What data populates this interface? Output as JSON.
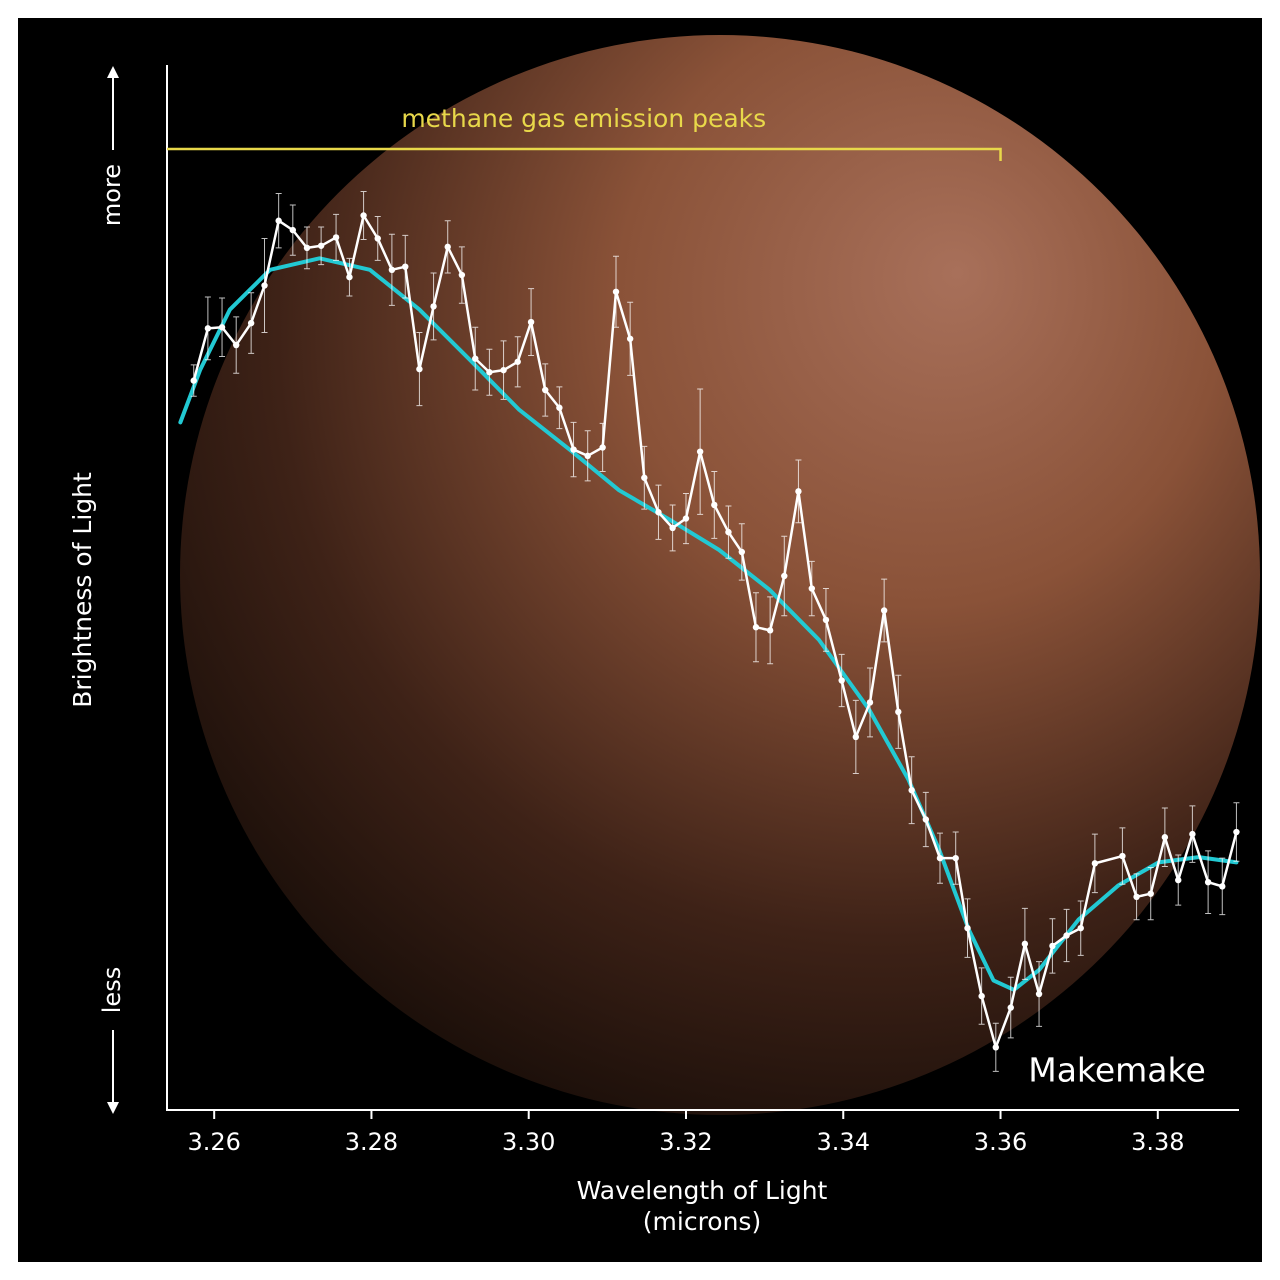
{
  "chart_data": {
    "type": "line",
    "ylabel": "Brightness of Light",
    "ylabel_more": "more",
    "ylabel_less": "less",
    "xlabel": [
      "Wavelength of Light",
      "(microns)"
    ],
    "annotation": {
      "text": "methane gas emission peaks",
      "end_x": 3.36,
      "color": "#e8d84a"
    },
    "label": "Makemake",
    "xlim": [
      3.254,
      3.3902
    ],
    "ylim": [
      0,
      100
    ],
    "xticks": [
      {
        "value": 3.26,
        "label": "3.26"
      },
      {
        "value": 3.28,
        "label": "3.28"
      },
      {
        "value": 3.3,
        "label": "3.30"
      },
      {
        "value": 3.32,
        "label": "3.32"
      },
      {
        "value": 3.34,
        "label": "3.34"
      },
      {
        "value": 3.36,
        "label": "3.36"
      },
      {
        "value": 3.38,
        "label": "3.38"
      }
    ],
    "series": [
      {
        "color": "#ffffff",
        "x": [
          3.2574,
          3.2592,
          3.261,
          3.2628,
          3.2647,
          3.2664,
          3.2682,
          3.27,
          3.2718,
          3.2736,
          3.2755,
          3.2772,
          3.279,
          3.2808,
          3.2826,
          3.2843,
          3.2861,
          3.2879,
          3.2897,
          3.2915,
          3.2932,
          3.295,
          3.2968,
          3.2986,
          3.3003,
          3.3021,
          3.3039,
          3.3057,
          3.3075,
          3.3094,
          3.3111,
          3.3129,
          3.3147,
          3.3165,
          3.3183,
          3.32,
          3.3218,
          3.3236,
          3.3254,
          3.3271,
          3.3289,
          3.3307,
          3.3325,
          3.3343,
          3.336,
          3.3378,
          3.3398,
          3.3416,
          3.3434,
          3.3452,
          3.347,
          3.3487,
          3.3505,
          3.3523,
          3.3543,
          3.3558,
          3.3576,
          3.3594,
          3.3613,
          3.3631,
          3.3649,
          3.3666,
          3.3684,
          3.3702,
          3.372,
          3.3755,
          3.3773,
          3.3791,
          3.3809,
          3.3826,
          3.3844,
          3.3864,
          3.3882,
          3.39
        ],
        "values": [
          69.8,
          74.8,
          74.9,
          73.2,
          75.3,
          78.9,
          85.1,
          84.2,
          82.5,
          82.7,
          83.5,
          79.7,
          85.6,
          83.4,
          80.4,
          80.7,
          70.9,
          76.9,
          82.6,
          79.9,
          71.9,
          70.6,
          70.8,
          71.6,
          75.4,
          68.9,
          67.2,
          63.2,
          62.6,
          63.4,
          78.3,
          73.8,
          60.5,
          57.2,
          55.7,
          56.6,
          63.0,
          57.9,
          55.3,
          53.4,
          46.2,
          45.9,
          51.1,
          59.2,
          49.9,
          46.9,
          41.1,
          35.7,
          39.0,
          47.8,
          38.1,
          30.6,
          27.8,
          24.1,
          24.1,
          17.4,
          10.9,
          6.0,
          9.8,
          15.9,
          11.1,
          15.7,
          16.7,
          17.4,
          23.6,
          24.3,
          20.4,
          20.7,
          26.1,
          22.0,
          26.4,
          21.8,
          21.4,
          26.6
        ],
        "errors": [
          1.5,
          3.0,
          2.8,
          2.7,
          2.9,
          4.5,
          2.6,
          2.4,
          2.0,
          1.8,
          2.2,
          1.8,
          2.3,
          2.1,
          3.4,
          3.0,
          3.5,
          3.2,
          2.5,
          2.7,
          3.0,
          2.2,
          2.8,
          2.4,
          3.2,
          2.5,
          2.0,
          2.6,
          2.4,
          2.3,
          3.4,
          3.5,
          3.0,
          2.6,
          2.2,
          2.4,
          6.0,
          3.2,
          2.5,
          2.7,
          3.3,
          3.2,
          3.8,
          3.0,
          2.6,
          3.0,
          2.5,
          3.5,
          3.3,
          3.0,
          3.5,
          3.2,
          2.6,
          2.4,
          2.5,
          2.8,
          2.7,
          2.3,
          2.9,
          3.4,
          3.1,
          2.6,
          2.5,
          2.6,
          2.8,
          2.7,
          2.2,
          2.5,
          2.8,
          2.4,
          2.7,
          3.0,
          2.7,
          2.8
        ]
      },
      {
        "color": "#22c9d3",
        "x": [
          3.2557,
          3.2582,
          3.262,
          3.2671,
          3.2734,
          3.2798,
          3.2861,
          3.2925,
          3.2988,
          3.3052,
          3.3115,
          3.3179,
          3.3242,
          3.3306,
          3.3369,
          3.3433,
          3.3483,
          3.3522,
          3.356,
          3.3591,
          3.3617,
          3.3649,
          3.3699,
          3.375,
          3.3801,
          3.3852,
          3.39
        ],
        "values": [
          65.8,
          70.8,
          76.6,
          80.4,
          81.5,
          80.4,
          76.6,
          71.8,
          67.0,
          63.2,
          59.3,
          56.5,
          53.6,
          49.8,
          45.0,
          38.3,
          31.6,
          24.9,
          17.2,
          12.4,
          11.5,
          13.4,
          18.2,
          21.5,
          23.7,
          24.2,
          23.7
        ]
      }
    ]
  }
}
